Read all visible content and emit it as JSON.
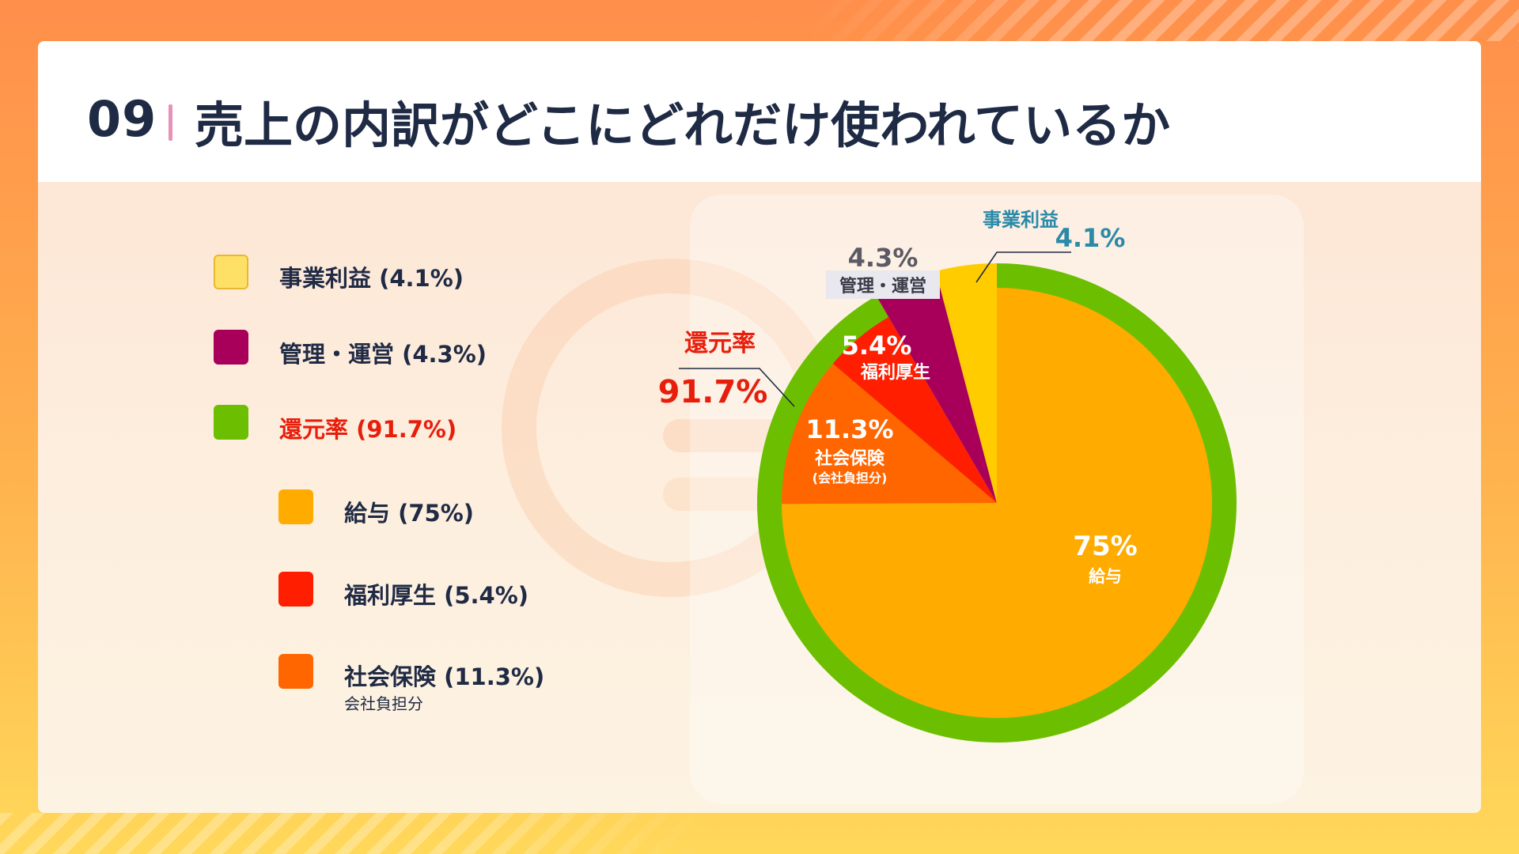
{
  "title": {
    "number": "09",
    "text": "売上の内訳がどこにどれだけ使われているか"
  },
  "legend": [
    {
      "label": "事業利益 (4.1%)",
      "color": "#ffe066"
    },
    {
      "label": "管理・運営 (4.3%)",
      "color": "#a8005a"
    },
    {
      "label": "還元率 (91.7%)",
      "color": "#6cbf00",
      "text_color": "#e81e0c"
    },
    {
      "label": "給与 (75%)",
      "color": "#ffab00"
    },
    {
      "label": "福利厚生 (5.4%)",
      "color": "#ff1e00"
    },
    {
      "label": "社会保険 (11.3%)",
      "sub": "会社負担分",
      "color": "#ff6600"
    }
  ],
  "chart_data": {
    "type": "pie",
    "title": "",
    "slices": [
      {
        "name": "給与",
        "value": 75,
        "color": "#ffab00"
      },
      {
        "name": "社会保険",
        "value": 11.3,
        "color": "#ff6600"
      },
      {
        "name": "福利厚生",
        "value": 5.4,
        "color": "#ff1e00"
      },
      {
        "name": "管理・運営",
        "value": 4.3,
        "color": "#a8005a"
      },
      {
        "name": "事業利益",
        "value": 4.1,
        "color": "#ffcc00"
      }
    ],
    "outer_ring": {
      "name": "還元率",
      "value": 91.7,
      "color": "#6cbf00",
      "covers": [
        "給与",
        "社会保険",
        "福利厚生"
      ]
    },
    "labels": {
      "kyuyo": {
        "pct": "75%",
        "name": "給与"
      },
      "shakai": {
        "pct": "11.3%",
        "name": "社会保険",
        "sub": "(会社負担分)"
      },
      "fukuri": {
        "pct": "5.4%",
        "name": "福利厚生"
      },
      "kanri": {
        "pct": "4.3%",
        "name": "管理・運営"
      },
      "jigyo": {
        "pct": "4.1%",
        "name": "事業利益"
      },
      "kangen": {
        "pct": "91.7%",
        "name": "還元率"
      }
    }
  }
}
